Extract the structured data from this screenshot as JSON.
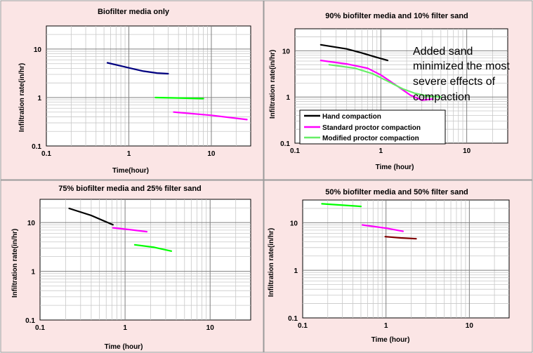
{
  "chart_data": [
    {
      "type": "line",
      "title": "Biofilter media only",
      "xlabel": "Time(hour)",
      "ylabel": "Infiltration rate(in/hr)",
      "xscale": "log",
      "yscale": "log",
      "xlim": [
        0.1,
        30
      ],
      "ylim": [
        0.1,
        30
      ],
      "xticks": [
        "0.1",
        "1",
        "10"
      ],
      "yticks": [
        "0.1",
        "1",
        "10"
      ],
      "series": [
        {
          "color": "#000080",
          "x": [
            0.55,
            0.8,
            1.0,
            1.5,
            2.2,
            3.0
          ],
          "y": [
            5.2,
            4.5,
            4.1,
            3.5,
            3.2,
            3.1
          ]
        },
        {
          "color": "#00ff00",
          "x": [
            2.1,
            4.0,
            8.0
          ],
          "y": [
            1.0,
            0.98,
            0.95
          ]
        },
        {
          "color": "#ff00ff",
          "x": [
            3.5,
            10.0,
            27.0
          ],
          "y": [
            0.5,
            0.43,
            0.35
          ]
        }
      ]
    },
    {
      "type": "line",
      "title": "90% biofilter media and 10% filter sand",
      "xlabel": "Time (hour)",
      "ylabel": "Infiltration rate(in/hr)",
      "xscale": "log",
      "yscale": "log",
      "xlim": [
        0.1,
        30
      ],
      "ylim": [
        0.1,
        30
      ],
      "xticks": [
        "0.1",
        "1",
        "10"
      ],
      "yticks": [
        "0.1",
        "1",
        "10"
      ],
      "legend_position": "bottom-left",
      "series": [
        {
          "name": "Hand compaction",
          "color": "#000000",
          "x": [
            0.2,
            0.4,
            0.6,
            0.9,
            1.2
          ],
          "y": [
            13.5,
            11.0,
            9.0,
            7.2,
            6.2
          ]
        },
        {
          "name": "Standard proctor compaction",
          "color": "#ff00ff",
          "x": [
            0.2,
            0.4,
            0.7,
            1.0,
            1.5,
            2.2,
            3.0,
            4.0
          ],
          "y": [
            6.2,
            5.2,
            4.2,
            3.0,
            1.8,
            1.1,
            0.85,
            0.9
          ]
        },
        {
          "name": "Modified proctor compaction",
          "color": "#66ee66",
          "x": [
            0.25,
            0.5,
            0.8,
            1.2,
            1.8,
            2.5,
            3.5,
            5.0
          ],
          "y": [
            5.0,
            4.2,
            3.2,
            2.2,
            1.5,
            1.2,
            1.05,
            1.0
          ]
        }
      ],
      "annotation": [
        "Added sand",
        "minimized the most",
        "severe effects of",
        "compaction"
      ]
    },
    {
      "type": "line",
      "title": "75% biofilter media and 25% filter sand",
      "xlabel": "Time (hour)",
      "ylabel": "Infiltration rate(in/hr)",
      "xscale": "log",
      "yscale": "log",
      "xlim": [
        0.1,
        30
      ],
      "ylim": [
        0.1,
        30
      ],
      "xticks": [
        "0.1",
        "1",
        "10"
      ],
      "yticks": [
        "0.1",
        "1",
        "10"
      ],
      "series": [
        {
          "color": "#000000",
          "x": [
            0.22,
            0.4,
            0.55,
            0.72
          ],
          "y": [
            19.5,
            14.0,
            11.0,
            9.0
          ]
        },
        {
          "color": "#ff00ff",
          "x": [
            0.72,
            1.1,
            1.8
          ],
          "y": [
            7.8,
            7.2,
            6.5
          ]
        },
        {
          "color": "#00ff00",
          "x": [
            1.3,
            2.2,
            3.5
          ],
          "y": [
            3.5,
            3.1,
            2.6
          ]
        }
      ]
    },
    {
      "type": "line",
      "title": "50% biofilter media and 50% filter sand",
      "xlabel": "Time (hour)",
      "ylabel": "Infiltration rate(in/hr)",
      "xscale": "log",
      "yscale": "log",
      "xlim": [
        0.1,
        30
      ],
      "ylim": [
        0.1,
        30
      ],
      "xticks": [
        "0.1",
        "1",
        "10"
      ],
      "yticks": [
        "0.1",
        "1",
        "10"
      ],
      "series": [
        {
          "color": "#00ff00",
          "x": [
            0.17,
            0.5
          ],
          "y": [
            25.0,
            22.0
          ]
        },
        {
          "color": "#ff00ff",
          "x": [
            0.52,
            1.0,
            1.6
          ],
          "y": [
            9.0,
            7.7,
            6.6
          ]
        },
        {
          "color": "#800000",
          "x": [
            0.98,
            1.5,
            2.3
          ],
          "y": [
            5.1,
            4.8,
            4.6
          ]
        }
      ]
    }
  ]
}
